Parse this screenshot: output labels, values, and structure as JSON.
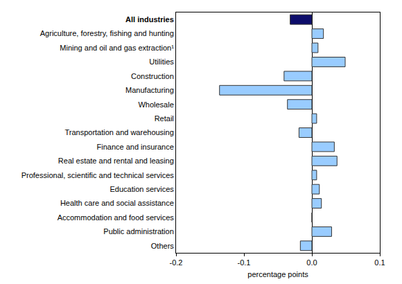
{
  "chart_data": {
    "type": "bar",
    "orientation": "horizontal",
    "x_label": "percentage points",
    "categories": [
      "All industries",
      "Agriculture, forestry, fishing and hunting",
      "Mining and oil and gas extraction¹",
      "Utilities",
      "Construction",
      "Manufacturing",
      "Wholesale",
      "Retail",
      "Transportation and warehousing",
      "Finance and insurance",
      "Real estate and rental and leasing",
      "Professional, scientific and technical services",
      "Education services",
      "Health care and social assistance",
      "Accommodation and food services",
      "Public administration",
      "Others"
    ],
    "values": [
      -0.032,
      0.017,
      0.009,
      0.049,
      -0.041,
      -0.136,
      -0.036,
      0.007,
      -0.019,
      0.033,
      0.037,
      0.007,
      0.011,
      0.014,
      0,
      0.029,
      -0.017
    ],
    "colors": [
      "#0d0d6b",
      "#99ccff",
      "#99ccff",
      "#99ccff",
      "#99ccff",
      "#99ccff",
      "#99ccff",
      "#99ccff",
      "#99ccff",
      "#99ccff",
      "#99ccff",
      "#99ccff",
      "#99ccff",
      "#99ccff",
      "#99ccff",
      "#99ccff",
      "#99ccff"
    ],
    "xlim": [
      -0.2,
      0.1
    ],
    "xticks": [
      -0.2,
      -0.1,
      {
        "value": 0,
        "label": "0.0"
      },
      0.1
    ],
    "grid": false
  }
}
